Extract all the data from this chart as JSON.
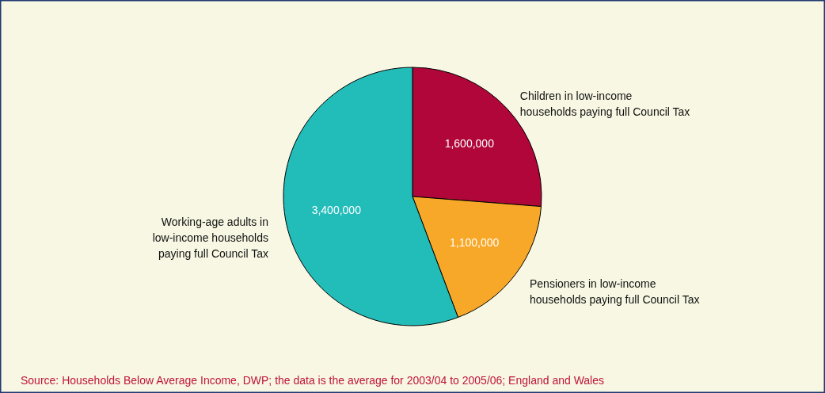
{
  "chart_data": {
    "type": "pie",
    "categories": [
      "Children in low-income\nhouseholds paying full Council Tax",
      "Pensioners in low-income\nhouseholds paying full Council Tax",
      "Working-age adults in\nlow-income households\npaying full Council Tax"
    ],
    "values": [
      1600000,
      1100000,
      3400000
    ],
    "colors": [
      "#b0063a",
      "#f8a828",
      "#22bcb9"
    ],
    "value_labels": [
      "1,600,000",
      "1,100,000",
      "3,400,000"
    ],
    "annotations": [
      "Source: Households Below Average Income, DWP; the data is the average for 2003/04 to 2005/06; England and Wales"
    ]
  }
}
